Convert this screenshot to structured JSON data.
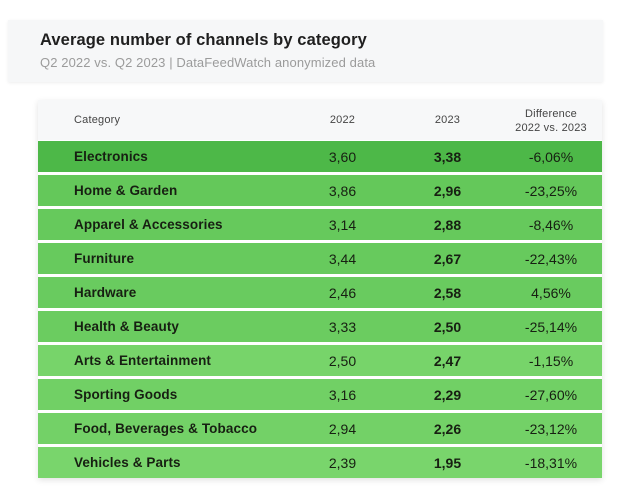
{
  "header": {
    "title": "Average number of channels by category",
    "subtitle": "Q2 2022 vs. Q2 2023 | DataFeedWatch anonymized data",
    "background": "#f6f7f8"
  },
  "table": {
    "header_background": "#f7f8f9",
    "columns": {
      "category": "Category",
      "y2022": "2022",
      "y2023": "2023",
      "diff_line1": "Difference",
      "diff_line2": "2022 vs. 2023"
    },
    "rows": [
      {
        "category": "Electronics",
        "y2022": "3,60",
        "y2023": "3,38",
        "diff": "-6,06%",
        "color": "#4db848"
      },
      {
        "category": "Home & Garden",
        "y2022": "3,86",
        "y2023": "2,96",
        "diff": "-23,25%",
        "color": "#64c85a"
      },
      {
        "category": "Apparel & Accessories",
        "y2022": "3,14",
        "y2023": "2,88",
        "diff": "-8,46%",
        "color": "#66c95c"
      },
      {
        "category": "Furniture",
        "y2022": "3,44",
        "y2023": "2,67",
        "diff": "-22,43%",
        "color": "#67ca5d"
      },
      {
        "category": "Hardware",
        "y2022": "2,46",
        "y2023": "2,58",
        "diff": "4,56%",
        "color": "#69cb5f"
      },
      {
        "category": "Health & Beauty",
        "y2022": "3,33",
        "y2023": "2,50",
        "diff": "-25,14%",
        "color": "#6bcc60"
      },
      {
        "category": "Arts & Entertainment",
        "y2022": "2,50",
        "y2023": "2,47",
        "diff": "-1,15%",
        "color": "#77d46a"
      },
      {
        "category": "Sporting Goods",
        "y2022": "3,16",
        "y2023": "2,29",
        "diff": "-27,60%",
        "color": "#71d065"
      },
      {
        "category": "Food, Beverages & Tobacco",
        "y2022": "2,94",
        "y2023": "2,26",
        "diff": "-23,12%",
        "color": "#73d167"
      },
      {
        "category": "Vehicles & Parts",
        "y2022": "2,39",
        "y2023": "1,95",
        "diff": "-18,31%",
        "color": "#79d56c"
      }
    ]
  },
  "chart_data": {
    "type": "table",
    "title": "Average number of channels by category",
    "subtitle": "Q2 2022 vs. Q2 2023 | DataFeedWatch anonymized data",
    "categories": [
      "Electronics",
      "Home & Garden",
      "Apparel & Accessories",
      "Furniture",
      "Hardware",
      "Health & Beauty",
      "Arts & Entertainment",
      "Sporting Goods",
      "Food, Beverages & Tobacco",
      "Vehicles & Parts"
    ],
    "series": [
      {
        "name": "2022",
        "values": [
          3.6,
          3.86,
          3.14,
          3.44,
          2.46,
          3.33,
          2.5,
          3.16,
          2.94,
          2.39
        ]
      },
      {
        "name": "2023",
        "values": [
          3.38,
          2.96,
          2.88,
          2.67,
          2.58,
          2.5,
          2.47,
          2.29,
          2.26,
          1.95
        ]
      },
      {
        "name": "Difference 2022 vs. 2023 (%)",
        "values": [
          -6.06,
          -23.25,
          -8.46,
          -22.43,
          4.56,
          -25.14,
          -1.15,
          -27.6,
          -23.12,
          -18.31
        ]
      }
    ],
    "layout": {
      "row_shading": "green, darker at top fading lighter toward bottom",
      "number_format": "comma decimal separator"
    }
  }
}
